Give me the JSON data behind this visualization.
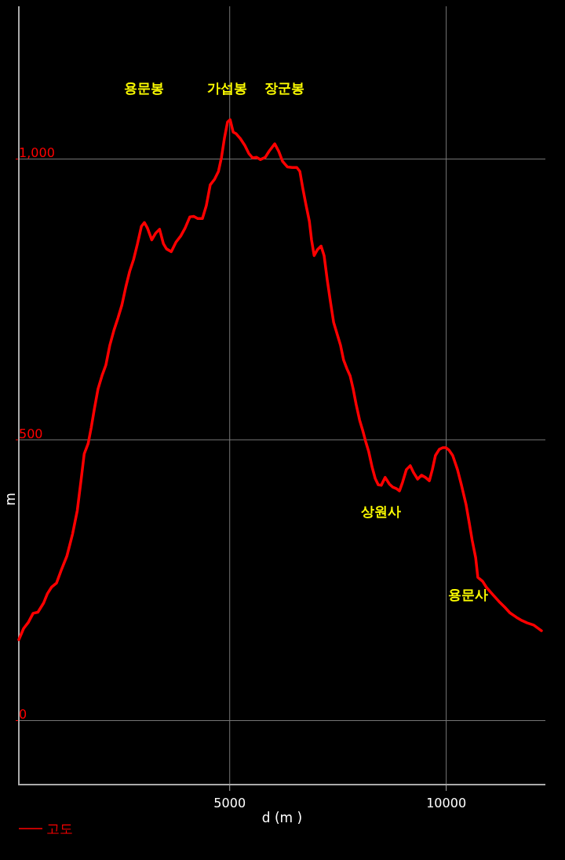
{
  "chart_data": {
    "type": "line",
    "xlabel": "d (m )",
    "ylabel": "m",
    "xlim": [
      130,
      12290
    ],
    "ylim": [
      -114,
      1272
    ],
    "xticks": [
      5000,
      10000
    ],
    "yticks": [
      0,
      500,
      {
        "value": 1000,
        "label": "1,000"
      }
    ],
    "grid": true,
    "legend": "bottom left",
    "marker": "none",
    "line_style": "solid",
    "x": [
      130,
      240,
      350,
      460,
      570,
      700,
      790,
      890,
      1000,
      1110,
      1240,
      1370,
      1480,
      1570,
      1640,
      1730,
      1800,
      1870,
      1960,
      2050,
      2140,
      2230,
      2330,
      2420,
      2510,
      2600,
      2690,
      2780,
      2870,
      2960,
      3030,
      3100,
      3200,
      3290,
      3380,
      3470,
      3540,
      3650,
      3760,
      3870,
      3970,
      4080,
      4170,
      4260,
      4370,
      4460,
      4550,
      4650,
      4740,
      4810,
      4880,
      4950,
      5010,
      5080,
      5150,
      5240,
      5350,
      5440,
      5530,
      5620,
      5710,
      5820,
      5910,
      6040,
      6130,
      6220,
      6330,
      6440,
      6550,
      6620,
      6690,
      6760,
      6840,
      6890,
      6950,
      7020,
      7110,
      7180,
      7250,
      7330,
      7400,
      7490,
      7560,
      7630,
      7710,
      7780,
      7850,
      7920,
      8000,
      8070,
      8140,
      8210,
      8290,
      8360,
      8430,
      8500,
      8590,
      8690,
      8760,
      8850,
      8920,
      8990,
      9080,
      9170,
      9250,
      9340,
      9430,
      9520,
      9610,
      9680,
      9750,
      9840,
      9920,
      9990,
      10060,
      10150,
      10260,
      10350,
      10460,
      10530,
      10600,
      10680,
      10730,
      10840,
      10930,
      11080,
      11220,
      11350,
      11470,
      11620,
      11750,
      11870,
      12020,
      12200
    ],
    "series": [
      {
        "name": "고도",
        "color": "#ff0000",
        "values": [
          144,
          164,
          175,
          191,
          193,
          209,
          226,
          238,
          245,
          268,
          293,
          332,
          374,
          430,
          475,
          493,
          521,
          553,
          591,
          614,
          633,
          668,
          696,
          717,
          740,
          772,
          800,
          821,
          849,
          880,
          887,
          877,
          856,
          868,
          875,
          849,
          840,
          835,
          852,
          863,
          877,
          897,
          898,
          894,
          894,
          917,
          954,
          964,
          978,
          1003,
          1038,
          1066,
          1070,
          1048,
          1045,
          1037,
          1024,
          1010,
          1002,
          1003,
          999,
          1003,
          1014,
          1027,
          1014,
          996,
          986,
          985,
          985,
          978,
          947,
          919,
          889,
          856,
          828,
          838,
          845,
          828,
          786,
          744,
          709,
          686,
          668,
          642,
          626,
          614,
          591,
          563,
          535,
          517,
          497,
          479,
          451,
          431,
          420,
          419,
          433,
          421,
          416,
          413,
          409,
          424,
          447,
          454,
          441,
          430,
          437,
          433,
          427,
          447,
          472,
          483,
          486,
          486,
          482,
          472,
          447,
          420,
          384,
          353,
          321,
          290,
          255,
          248,
          237,
          224,
          212,
          202,
          192,
          184,
          178,
          174,
          170,
          160
        ]
      }
    ],
    "annotations": [
      "용문봉",
      "가섭봉",
      "장군봉",
      "상원사",
      "용문사"
    ]
  }
}
